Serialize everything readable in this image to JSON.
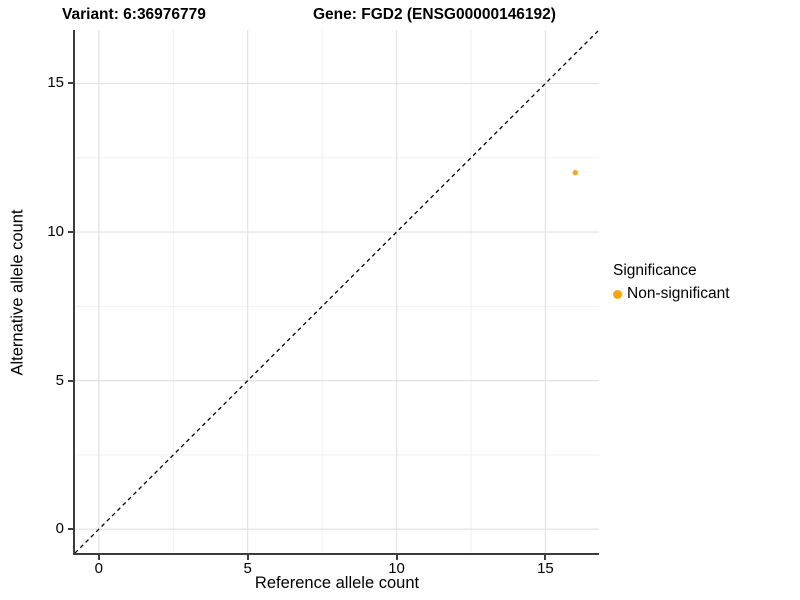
{
  "chart_data": {
    "type": "scatter",
    "titles": {
      "variant": "Variant: 6:36976779",
      "gene": "Gene: FGD2 (ENSG00000146192)"
    },
    "xlabel": "Reference allele count",
    "ylabel": "Alternative allele count",
    "xlim": [
      -0.8,
      16.8
    ],
    "ylim": [
      -0.8,
      16.8
    ],
    "xticks": [
      0,
      5,
      10,
      15
    ],
    "yticks": [
      0,
      5,
      10,
      15
    ],
    "xticks_minor": [
      2.5,
      7.5,
      12.5
    ],
    "yticks_minor": [
      2.5,
      7.5,
      12.5
    ],
    "grid": "major+minor",
    "series": [
      {
        "name": "Non-significant",
        "color": "#FFA500",
        "points": [
          {
            "x": 16,
            "y": 12
          }
        ]
      }
    ],
    "reference_line": {
      "kind": "identity",
      "slope": 1,
      "intercept": 0,
      "style": "dashed",
      "color": "#000000"
    },
    "legend": {
      "title": "Significance",
      "position": "right",
      "items": [
        {
          "label": "Non-significant",
          "color": "#FFA500"
        }
      ]
    },
    "colors": {
      "grid_major": "#E2E2E2",
      "grid_minor": "#EFEFEF",
      "axis_line": "#3C3C3C",
      "text": "#000000"
    }
  }
}
